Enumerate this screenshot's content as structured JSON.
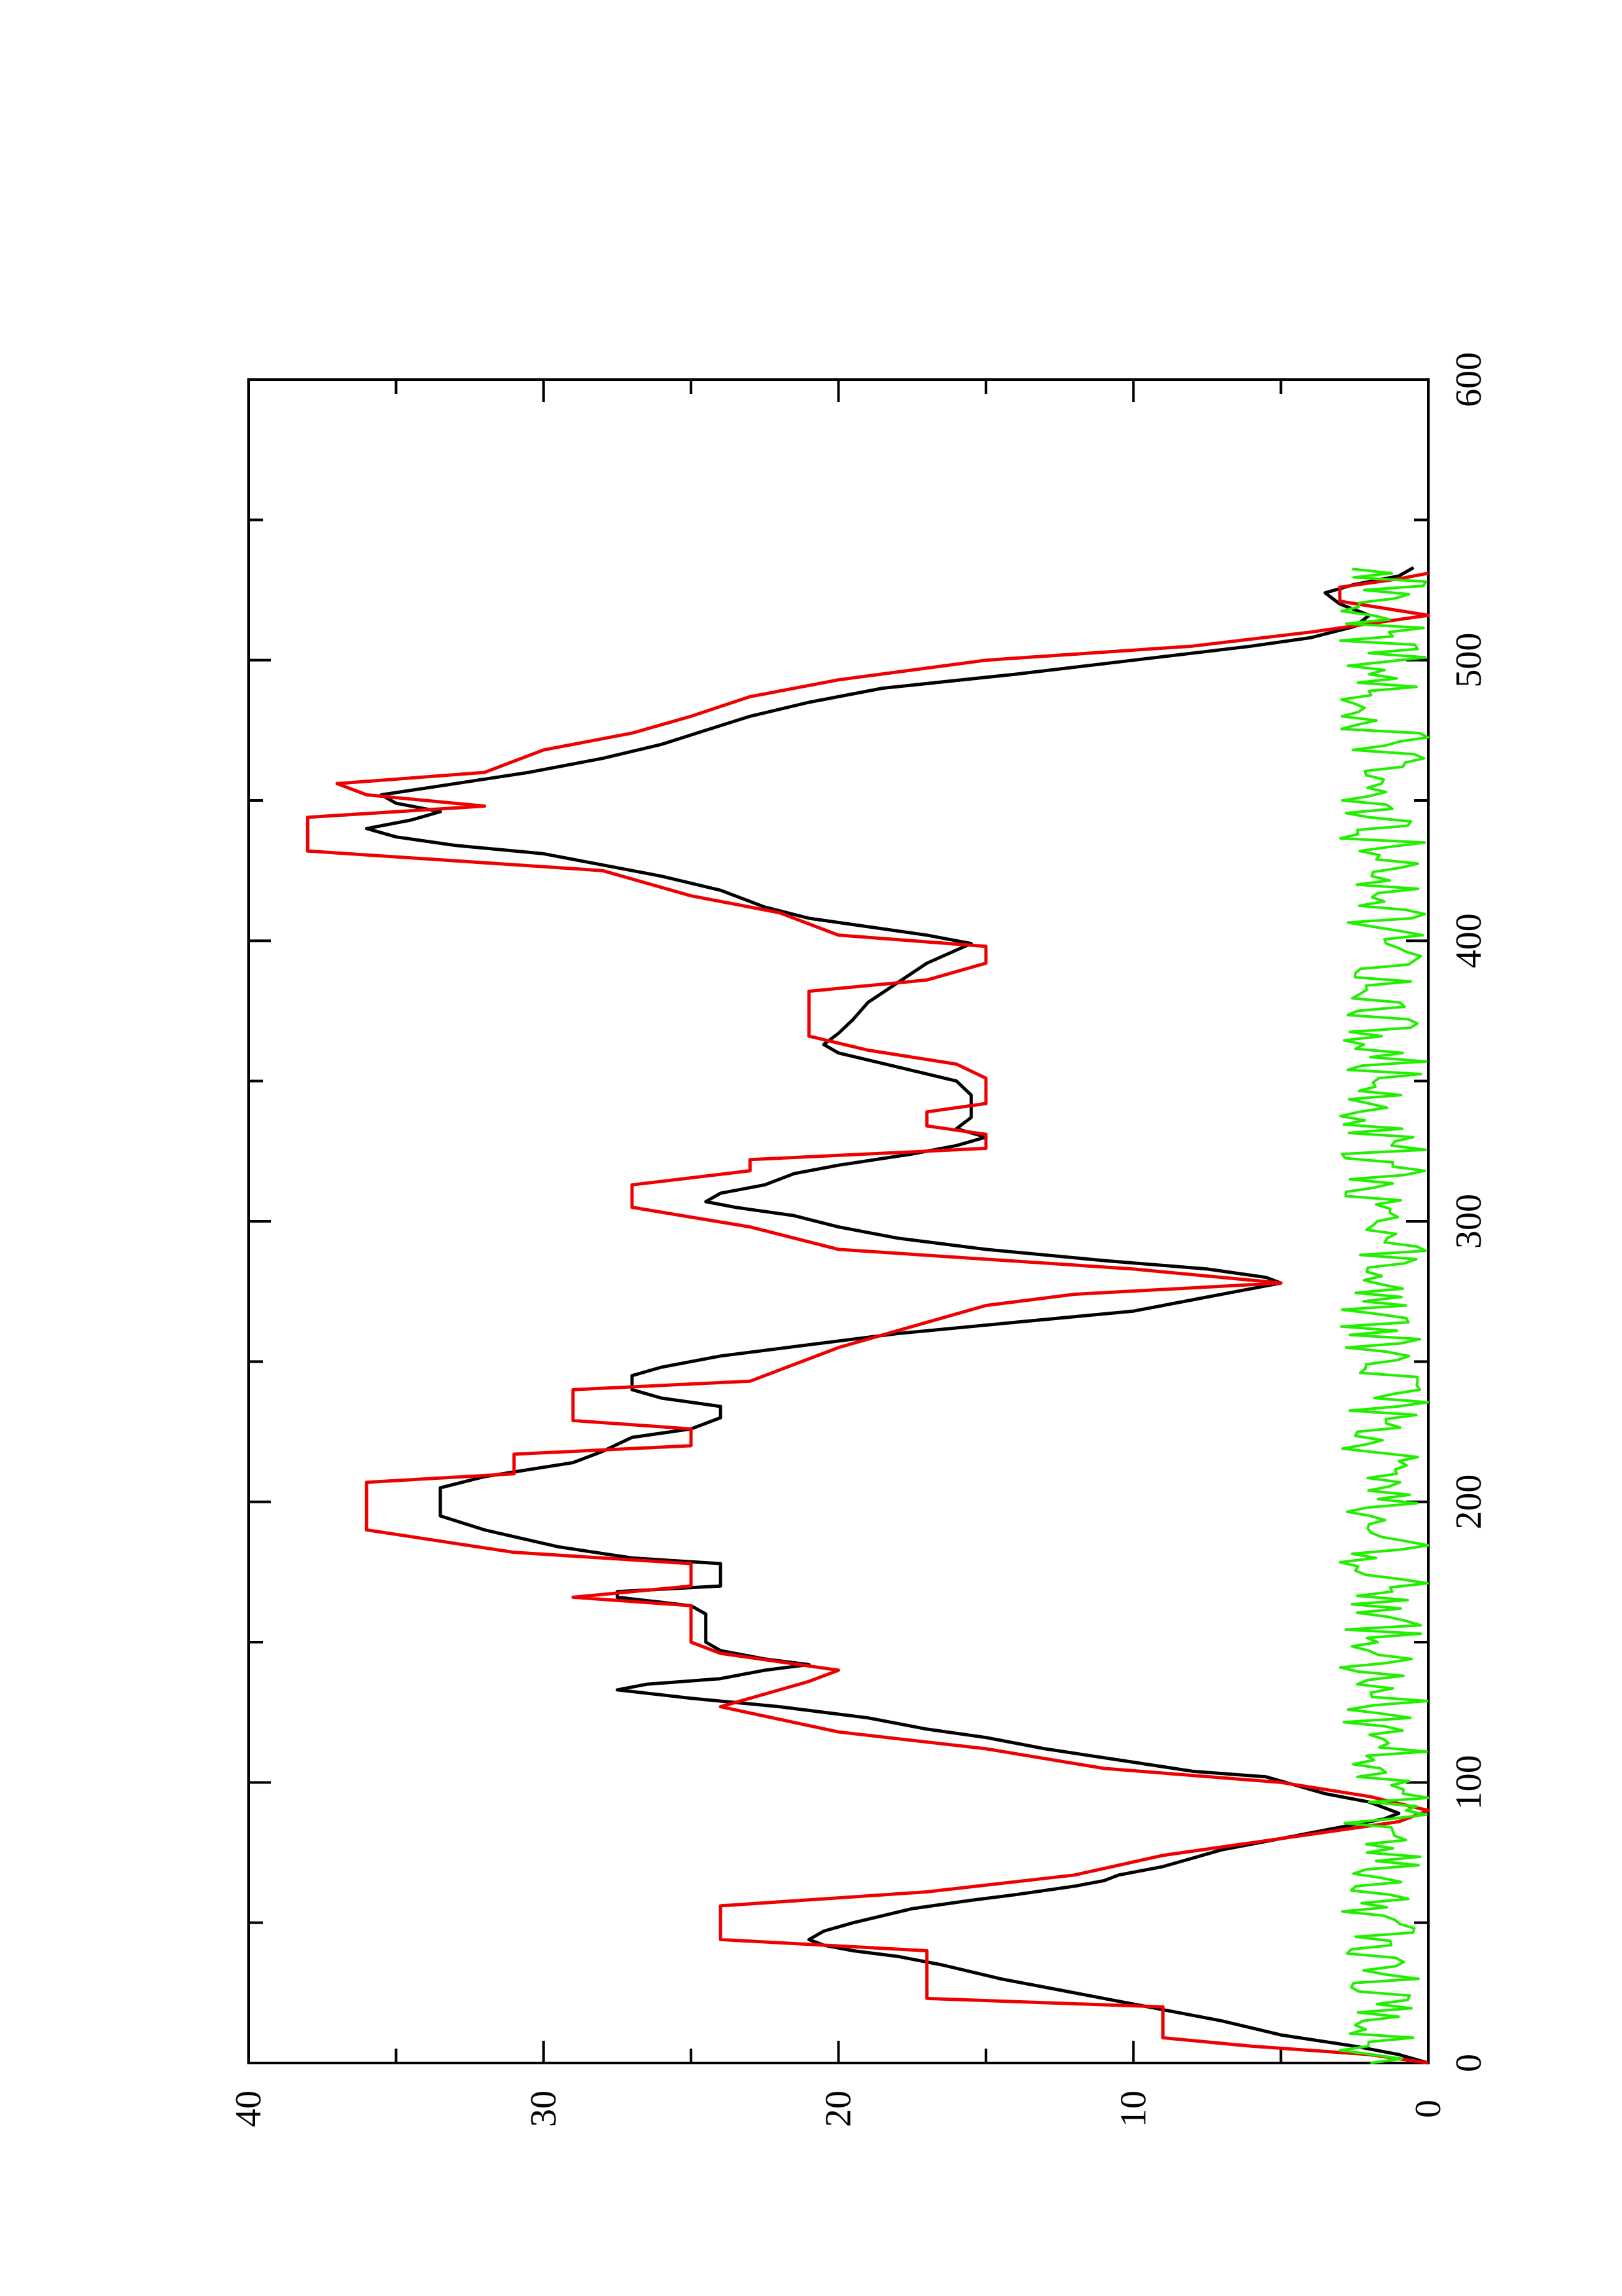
{
  "chart_data": {
    "type": "line",
    "orientation": "rotated-90-ccw",
    "title": "",
    "xlabel": "",
    "ylabel": "",
    "xlim": [
      0,
      600
    ],
    "ylim": [
      0,
      40
    ],
    "x_ticks": [
      "0",
      "100",
      "200",
      "300",
      "400",
      "500",
      "600"
    ],
    "y_ticks": [
      "0",
      "10",
      "20",
      "30",
      "40"
    ],
    "grid": false,
    "series": [
      {
        "color": "#000000",
        "style": "line",
        "points": [
          [
            0,
            0
          ],
          [
            3,
            1
          ],
          [
            6,
            2.5
          ],
          [
            10,
            5
          ],
          [
            15,
            7
          ],
          [
            18,
            8.5
          ],
          [
            22,
            10.5
          ],
          [
            26,
            12.5
          ],
          [
            30,
            14.5
          ],
          [
            35,
            16.5
          ],
          [
            38,
            18
          ],
          [
            40,
            19.5
          ],
          [
            42,
            20.5
          ],
          [
            44,
            21
          ],
          [
            47,
            20.5
          ],
          [
            50,
            19.5
          ],
          [
            55,
            17.5
          ],
          [
            58,
            15.5
          ],
          [
            60,
            14
          ],
          [
            63,
            12
          ],
          [
            65,
            11
          ],
          [
            67,
            10.5
          ],
          [
            70,
            9
          ],
          [
            73,
            8
          ],
          [
            76,
            7
          ],
          [
            79,
            5.5
          ],
          [
            82,
            4
          ],
          [
            85,
            2.5
          ],
          [
            87,
            1.5
          ],
          [
            89,
            1
          ],
          [
            91,
            1.5
          ],
          [
            93,
            2
          ],
          [
            96,
            3.5
          ],
          [
            99,
            4.5
          ],
          [
            102,
            5.5
          ],
          [
            104,
            8
          ],
          [
            108,
            10.5
          ],
          [
            112,
            13
          ],
          [
            116,
            15
          ],
          [
            119,
            17
          ],
          [
            123,
            19
          ],
          [
            127,
            22
          ],
          [
            130,
            25
          ],
          [
            133,
            27.5
          ],
          [
            135,
            26.5
          ],
          [
            137,
            24
          ],
          [
            140,
            22.5
          ],
          [
            142,
            21
          ],
          [
            144,
            22.5
          ],
          [
            147,
            24
          ],
          [
            150,
            24.5
          ],
          [
            160,
            24.5
          ],
          [
            163,
            25
          ],
          [
            166,
            27.5
          ],
          [
            168,
            27.5
          ],
          [
            170,
            24
          ],
          [
            178,
            24
          ],
          [
            180,
            27
          ],
          [
            184,
            29.5
          ],
          [
            190,
            32
          ],
          [
            195,
            33.5
          ],
          [
            205,
            33.5
          ],
          [
            209,
            32
          ],
          [
            214,
            29
          ],
          [
            218,
            28
          ],
          [
            223,
            27
          ],
          [
            226,
            25
          ],
          [
            230,
            24
          ],
          [
            234,
            24
          ],
          [
            237,
            26
          ],
          [
            240,
            27
          ],
          [
            245,
            27
          ],
          [
            248,
            26
          ],
          [
            252,
            24
          ],
          [
            256,
            21
          ],
          [
            260,
            18
          ],
          [
            264,
            14
          ],
          [
            268,
            10
          ],
          [
            272,
            8
          ],
          [
            276,
            6
          ],
          [
            278,
            5
          ],
          [
            280,
            5.5
          ],
          [
            283,
            7.5
          ],
          [
            286,
            11
          ],
          [
            290,
            15
          ],
          [
            294,
            18
          ],
          [
            298,
            20
          ],
          [
            302,
            21.5
          ],
          [
            305,
            23.5
          ],
          [
            307,
            24.5
          ],
          [
            310,
            24
          ],
          [
            313,
            22.5
          ],
          [
            317,
            21.5
          ],
          [
            320,
            20
          ],
          [
            324,
            17.5
          ],
          [
            327,
            16
          ],
          [
            330,
            15
          ],
          [
            333,
            16
          ],
          [
            337,
            15.5
          ],
          [
            345,
            15.5
          ],
          [
            350,
            16
          ],
          [
            355,
            18
          ],
          [
            360,
            20
          ],
          [
            363,
            20.5
          ],
          [
            367,
            20
          ],
          [
            372,
            19.5
          ],
          [
            378,
            19
          ],
          [
            385,
            18
          ],
          [
            392,
            17
          ],
          [
            399,
            15.5
          ],
          [
            402,
            17
          ],
          [
            405,
            19
          ],
          [
            408,
            21
          ],
          [
            412,
            22.5
          ],
          [
            418,
            24
          ],
          [
            423,
            26
          ],
          [
            427,
            28
          ],
          [
            431,
            30
          ],
          [
            434,
            33
          ],
          [
            437,
            35
          ],
          [
            440,
            36
          ],
          [
            443,
            34.5
          ],
          [
            446,
            33.5
          ],
          [
            449,
            35
          ],
          [
            452,
            35.5
          ],
          [
            456,
            33
          ],
          [
            460,
            30.5
          ],
          [
            465,
            28
          ],
          [
            470,
            26
          ],
          [
            475,
            24.5
          ],
          [
            480,
            23
          ],
          [
            485,
            21
          ],
          [
            490,
            18.5
          ],
          [
            495,
            14
          ],
          [
            500,
            10
          ],
          [
            505,
            6
          ],
          [
            508,
            4
          ],
          [
            512,
            2.5
          ],
          [
            516,
            2
          ],
          [
            520,
            3
          ],
          [
            524,
            3.5
          ],
          [
            527,
            2.5
          ],
          [
            530,
            1
          ],
          [
            533,
            0.5
          ]
        ]
      },
      {
        "color": "#ee0000",
        "style": "step",
        "points": [
          [
            0,
            0
          ],
          [
            3,
            2
          ],
          [
            6,
            6
          ],
          [
            9,
            9
          ],
          [
            20,
            9
          ],
          [
            23,
            17
          ],
          [
            40,
            17
          ],
          [
            44,
            24
          ],
          [
            56,
            24
          ],
          [
            61,
            17
          ],
          [
            67,
            12
          ],
          [
            74,
            9
          ],
          [
            80,
            5
          ],
          [
            86,
            1
          ],
          [
            90,
            -1
          ],
          [
            95,
            2
          ],
          [
            100,
            5
          ],
          [
            105,
            11
          ],
          [
            112,
            15
          ],
          [
            118,
            20
          ],
          [
            127,
            24
          ],
          [
            136,
            21
          ],
          [
            140,
            20
          ],
          [
            146,
            24
          ],
          [
            150,
            25
          ],
          [
            163,
            25
          ],
          [
            166,
            29
          ],
          [
            170,
            25
          ],
          [
            178,
            25
          ],
          [
            182,
            31
          ],
          [
            190,
            36
          ],
          [
            207,
            36
          ],
          [
            210,
            31
          ],
          [
            217,
            31
          ],
          [
            220,
            25
          ],
          [
            226,
            25
          ],
          [
            229,
            29
          ],
          [
            240,
            29
          ],
          [
            243,
            23
          ],
          [
            255,
            20
          ],
          [
            264,
            17
          ],
          [
            270,
            15
          ],
          [
            274,
            12
          ],
          [
            278,
            5
          ],
          [
            283,
            10
          ],
          [
            290,
            20
          ],
          [
            298,
            23
          ],
          [
            305,
            27
          ],
          [
            313,
            27
          ],
          [
            318,
            23
          ],
          [
            322,
            23
          ],
          [
            326,
            15
          ],
          [
            331,
            15
          ],
          [
            334,
            17
          ],
          [
            339,
            17
          ],
          [
            342,
            15
          ],
          [
            351,
            15
          ],
          [
            356,
            16
          ],
          [
            361,
            19
          ],
          [
            366,
            21
          ],
          [
            382,
            21
          ],
          [
            386,
            17
          ],
          [
            392,
            15
          ],
          [
            398,
            15
          ],
          [
            402,
            20
          ],
          [
            410,
            22
          ],
          [
            416,
            25
          ],
          [
            425,
            28
          ],
          [
            432,
            38
          ],
          [
            444,
            38
          ],
          [
            448,
            32
          ],
          [
            452,
            36
          ],
          [
            456,
            37
          ],
          [
            460,
            32
          ],
          [
            468,
            30
          ],
          [
            474,
            27
          ],
          [
            480,
            25
          ],
          [
            487,
            23
          ],
          [
            493,
            20
          ],
          [
            500,
            15
          ],
          [
            505,
            8
          ],
          [
            510,
            4
          ],
          [
            516,
            0
          ],
          [
            521,
            3
          ],
          [
            526,
            3
          ],
          [
            529,
            1
          ],
          [
            531,
            0
          ]
        ]
      },
      {
        "color": "#22ee00",
        "style": "noise",
        "mean": 1.5,
        "amplitude": 1.5,
        "x_range": [
          0,
          533
        ]
      }
    ]
  }
}
